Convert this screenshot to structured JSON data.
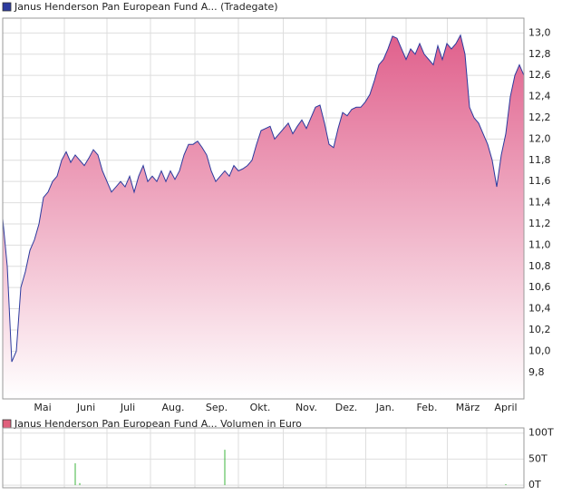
{
  "chart_data": [
    {
      "type": "area",
      "title": "Janus Henderson Pan European Fund A... (Tradegate)",
      "series": [
        {
          "name": "Janus Henderson Pan European Fund A... (Tradegate)",
          "color": "#2b3a9e",
          "values": [
            11.25,
            10.8,
            9.9,
            10.0,
            10.6,
            10.75,
            10.95,
            11.05,
            11.2,
            11.45,
            11.5,
            11.6,
            11.65,
            11.8,
            11.88,
            11.78,
            11.85,
            11.8,
            11.75,
            11.82,
            11.9,
            11.85,
            11.7,
            11.6,
            11.5,
            11.55,
            11.6,
            11.55,
            11.65,
            11.5,
            11.65,
            11.75,
            11.6,
            11.65,
            11.6,
            11.7,
            11.6,
            11.7,
            11.62,
            11.7,
            11.85,
            11.95,
            11.95,
            11.98,
            11.92,
            11.85,
            11.7,
            11.6,
            11.65,
            11.7,
            11.65,
            11.75,
            11.7,
            11.72,
            11.75,
            11.8,
            11.95,
            12.08,
            12.1,
            12.12,
            12.0,
            12.05,
            12.1,
            12.15,
            12.05,
            12.12,
            12.18,
            12.1,
            12.2,
            12.3,
            12.32,
            12.15,
            11.95,
            11.92,
            12.1,
            12.25,
            12.22,
            12.28,
            12.3,
            12.3,
            12.35,
            12.42,
            12.55,
            12.7,
            12.75,
            12.85,
            12.97,
            12.95,
            12.85,
            12.75,
            12.85,
            12.8,
            12.9,
            12.8,
            12.75,
            12.7,
            12.88,
            12.75,
            12.9,
            12.85,
            12.9,
            12.98,
            12.8,
            12.3,
            12.2,
            12.15,
            12.05,
            11.95,
            11.8,
            11.55,
            11.85,
            12.05,
            12.4,
            12.6,
            12.7,
            12.6
          ]
        }
      ],
      "fill_color": "#e0608c",
      "xlim": [
        0,
        115
      ],
      "xticks": [
        {
          "value": 8.8,
          "label": "Mai"
        },
        {
          "value": 18.4,
          "label": "Juni"
        },
        {
          "value": 27.6,
          "label": "Juli"
        },
        {
          "value": 37.6,
          "label": "Aug."
        },
        {
          "value": 47.2,
          "label": "Sep."
        },
        {
          "value": 56.8,
          "label": "Okt."
        },
        {
          "value": 67,
          "label": "Nov."
        },
        {
          "value": 75.8,
          "label": "Dez."
        },
        {
          "value": 84.4,
          "label": "Jan."
        },
        {
          "value": 93.6,
          "label": "Feb."
        },
        {
          "value": 102.6,
          "label": "März"
        },
        {
          "value": 111,
          "label": "April"
        }
      ],
      "ylim": [
        9.55,
        13.14
      ],
      "yticks": [
        {
          "value": 9.8,
          "label": "9,8"
        },
        {
          "value": 10.0,
          "label": "10,0"
        },
        {
          "value": 10.2,
          "label": "10,2"
        },
        {
          "value": 10.4,
          "label": "10,4"
        },
        {
          "value": 10.6,
          "label": "10,6"
        },
        {
          "value": 10.8,
          "label": "10,8"
        },
        {
          "value": 11.0,
          "label": "11,0"
        },
        {
          "value": 11.2,
          "label": "11,2"
        },
        {
          "value": 11.4,
          "label": "11,4"
        },
        {
          "value": 11.6,
          "label": "11,6"
        },
        {
          "value": 11.8,
          "label": "11,8"
        },
        {
          "value": 12.0,
          "label": "12,0"
        },
        {
          "value": 12.2,
          "label": "12,2"
        },
        {
          "value": 12.4,
          "label": "12,4"
        },
        {
          "value": 12.6,
          "label": "12,6"
        },
        {
          "value": 12.8,
          "label": "12,8"
        },
        {
          "value": 13.0,
          "label": "13,0"
        }
      ],
      "grid": true
    },
    {
      "type": "bar",
      "title": "Janus Henderson Pan European Fund A... Volumen in Euro",
      "series": [
        {
          "name": "Janus Henderson Pan European Fund A... Volumen in Euro",
          "color": "#3cb43c",
          "values": [
            0,
            0,
            0,
            0,
            0,
            0,
            0,
            0,
            0,
            0,
            0,
            0,
            0,
            0,
            0,
            0,
            42,
            4,
            0,
            0,
            0,
            0,
            0,
            0,
            0,
            0,
            0,
            0,
            0,
            0,
            0,
            0,
            0,
            0,
            0,
            0,
            0,
            0,
            0,
            0,
            0,
            0,
            0,
            0,
            0,
            0,
            0,
            0,
            0,
            68,
            0,
            0,
            0,
            0,
            0,
            0,
            0,
            0,
            0,
            0,
            0,
            0,
            0,
            0,
            0,
            0,
            0,
            0,
            0,
            0,
            0,
            0,
            0,
            0,
            0,
            0,
            0,
            0,
            0,
            0,
            0,
            0,
            0,
            0,
            0,
            0,
            0,
            0,
            0,
            0,
            0,
            0,
            0,
            0,
            0,
            0,
            0,
            0,
            0,
            0,
            0,
            0,
            0,
            0,
            0,
            0,
            0,
            0,
            0,
            0,
            0,
            2,
            0,
            0,
            0,
            0
          ]
        }
      ],
      "legend_color": "#e0607c",
      "xlim": [
        0,
        115
      ],
      "ylim": [
        -5,
        110
      ],
      "yticks": [
        {
          "value": 0,
          "label": "0T"
        },
        {
          "value": 50,
          "label": "50T"
        },
        {
          "value": 100,
          "label": "100T"
        }
      ],
      "grid": true
    }
  ]
}
